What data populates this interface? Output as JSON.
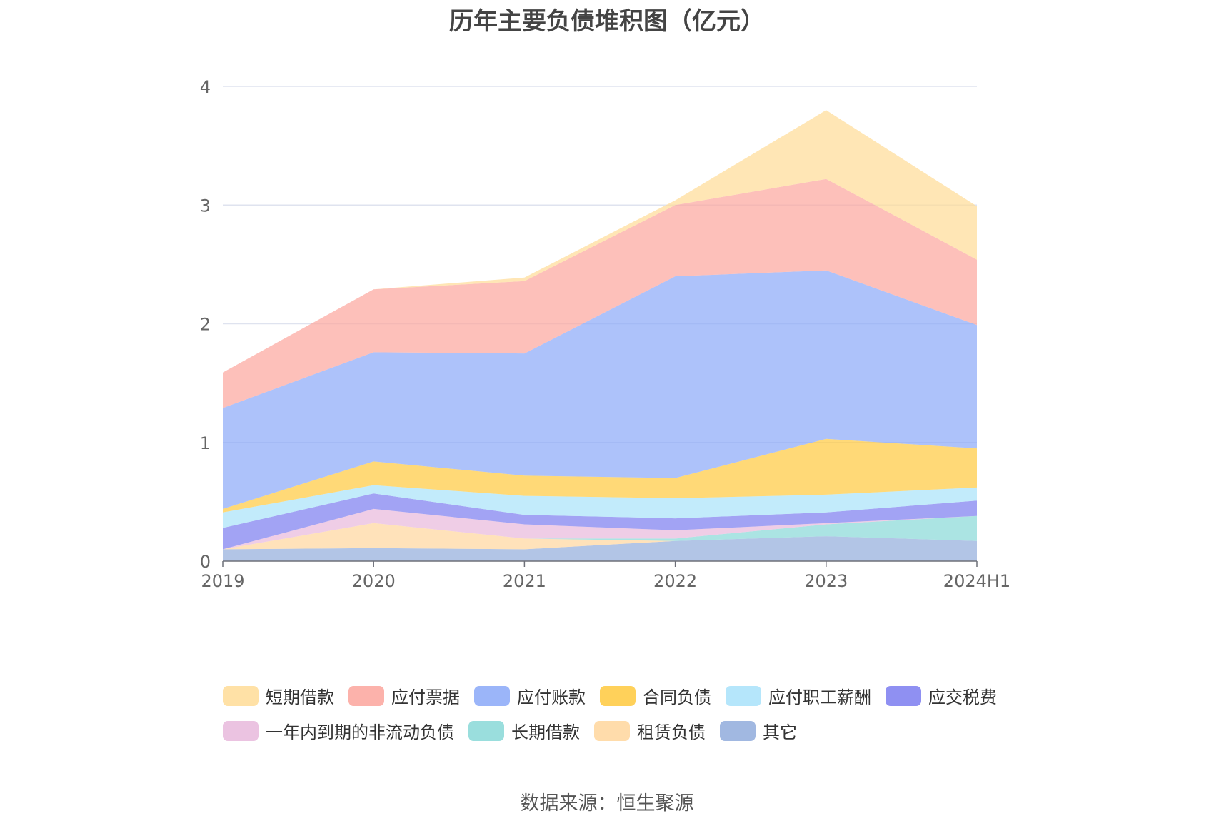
{
  "chart_data": {
    "type": "area",
    "stacked": true,
    "title": "历年主要负债堆积图（亿元）",
    "categories": [
      "2019",
      "2020",
      "2021",
      "2022",
      "2023",
      "2024H1"
    ],
    "ylim": [
      0,
      4
    ],
    "yticks": [
      "0",
      "1",
      "2",
      "3",
      "4"
    ],
    "grid": true,
    "legend_position": "bottom",
    "series": [
      {
        "name": "其它",
        "color": "#91acdc",
        "values": [
          0.1,
          0.11,
          0.1,
          0.17,
          0.21,
          0.17
        ]
      },
      {
        "name": "租赁负债",
        "color": "#ffd69c",
        "values": [
          0.0,
          0.21,
          0.09,
          0.0,
          0.0,
          0.0
        ]
      },
      {
        "name": "长期借款",
        "color": "#88d8d7",
        "values": [
          0.0,
          0.0,
          0.0,
          0.02,
          0.1,
          0.21
        ]
      },
      {
        "name": "一年内到期的非流动负债",
        "color": "#e8b8dc",
        "values": [
          0.0,
          0.12,
          0.12,
          0.07,
          0.01,
          0.0
        ]
      },
      {
        "name": "应交税费",
        "color": "#7b7cf0",
        "values": [
          0.18,
          0.13,
          0.08,
          0.1,
          0.09,
          0.13
        ]
      },
      {
        "name": "应付职工薪酬",
        "color": "#a8e2fa",
        "values": [
          0.13,
          0.07,
          0.16,
          0.17,
          0.15,
          0.11
        ]
      },
      {
        "name": "合同负债",
        "color": "#ffc93d",
        "values": [
          0.03,
          0.2,
          0.17,
          0.17,
          0.47,
          0.33
        ]
      },
      {
        "name": "应付账款",
        "color": "#8aa8f8",
        "values": [
          0.85,
          0.92,
          1.03,
          1.7,
          1.42,
          1.04
        ]
      },
      {
        "name": "应付票据",
        "color": "#fca59c",
        "values": [
          0.3,
          0.53,
          0.61,
          0.6,
          0.77,
          0.55
        ]
      },
      {
        "name": "短期借款",
        "color": "#ffdc96",
        "values": [
          0.0,
          0.0,
          0.03,
          0.04,
          0.58,
          0.45
        ]
      }
    ]
  },
  "legend": {
    "rows": [
      [
        {
          "label": "短期借款",
          "color": "#ffdc96"
        },
        {
          "label": "应付票据",
          "color": "#fca59c"
        },
        {
          "label": "应付账款",
          "color": "#8aa8f8"
        },
        {
          "label": "合同负债",
          "color": "#ffc93d"
        },
        {
          "label": "应付职工薪酬",
          "color": "#a8e2fa"
        },
        {
          "label": "应交税费",
          "color": "#7b7cf0"
        }
      ],
      [
        {
          "label": "一年内到期的非流动负债",
          "color": "#e8b8dc"
        },
        {
          "label": "长期借款",
          "color": "#88d8d7"
        },
        {
          "label": "租赁负债",
          "color": "#ffd69c"
        },
        {
          "label": "其它",
          "color": "#91acdc"
        }
      ]
    ]
  },
  "source": "数据来源：恒生聚源"
}
